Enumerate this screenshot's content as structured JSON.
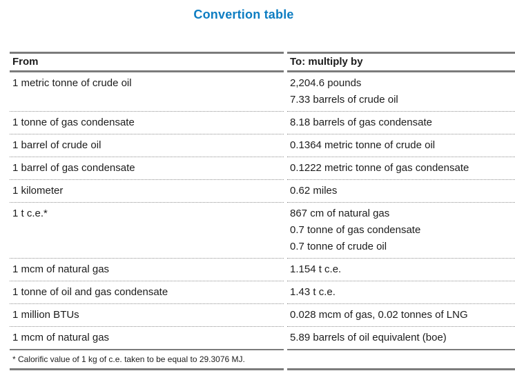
{
  "title": "Convertion table",
  "accent_color": "#0d7dc2",
  "rule_color": "#7b7b7b",
  "table": {
    "headers": {
      "from": "From",
      "to": "To: multiply by"
    },
    "rows": [
      {
        "from": "1 metric tonne of crude oil",
        "to": [
          "2,204.6 pounds",
          "7.33 barrels of crude oil"
        ]
      },
      {
        "from": "1 tonne of gas condensate",
        "to": [
          "8.18 barrels of gas condensate"
        ]
      },
      {
        "from": "1 barrel of crude oil",
        "to": [
          "0.1364 metric tonne of crude oil"
        ]
      },
      {
        "from": "1 barrel of gas condensate",
        "to": [
          "0.1222 metric tonne of gas condensate"
        ]
      },
      {
        "from": "1 kilometer",
        "to": [
          "0.62 miles"
        ]
      },
      {
        "from": "1 t c.e.*",
        "to": [
          "867 cm of natural gas",
          "0.7 tonne of gas condensate",
          "0.7 tonne of crude oil"
        ]
      },
      {
        "from": "1 mcm of natural gas",
        "to": [
          "1.154 t c.e."
        ]
      },
      {
        "from": "1 tonne of oil and gas condensate",
        "to": [
          "1.43 t c.e."
        ]
      },
      {
        "from": "1 million BTUs",
        "to": [
          "0.028 mcm of gas, 0.02 tonnes of LNG"
        ]
      },
      {
        "from": "1 mcm of natural gas",
        "to": [
          "5.89 barrels of oil equivalent (boe)"
        ]
      }
    ],
    "footnote": "* Calorific value of 1 kg of c.e. taken to be equal to 29.3076 MJ."
  }
}
